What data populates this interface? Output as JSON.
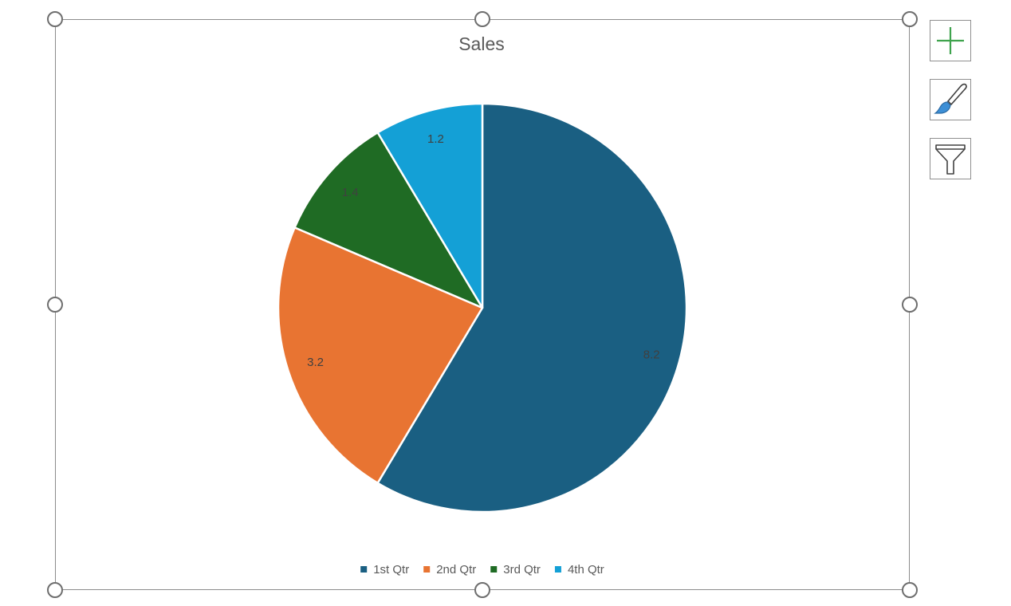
{
  "chart_data": {
    "type": "pie",
    "title": "Sales",
    "categories": [
      "1st Qtr",
      "2nd Qtr",
      "3rd Qtr",
      "4th Qtr"
    ],
    "values": [
      8.2,
      3.2,
      1.4,
      1.2
    ],
    "value_labels": [
      "8.2",
      "3.2",
      "1.4",
      "1.2"
    ],
    "colors": [
      "#1a5f82",
      "#e87432",
      "#1f6b24",
      "#14a0d6"
    ],
    "legend_position": "bottom",
    "start_angle": "top, clockwise"
  },
  "side_buttons": [
    {
      "icon": "plus-icon"
    },
    {
      "icon": "paintbrush-icon"
    },
    {
      "icon": "filter-icon"
    }
  ]
}
